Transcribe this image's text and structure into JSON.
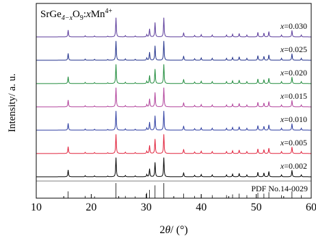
{
  "chart_data": {
    "type": "line",
    "formula": {
      "base": "SrGe",
      "sub1": "4−x",
      "mid": "O",
      "sub2": "9",
      "colon": ":",
      "x": "x",
      "dopant": "Mn",
      "sup": "4+"
    },
    "xlabel": {
      "prefix": "2",
      "theta": "θ",
      "suffix": "/ (°)"
    },
    "ylabel": "Intensity/ a. u.",
    "xlim": [
      10,
      60
    ],
    "xticks": [
      "10",
      "20",
      "30",
      "40",
      "50",
      "60"
    ],
    "reference_label": "PDF No.14-0029",
    "reference_lines": [
      {
        "x": 15.8,
        "h": 0.45
      },
      {
        "x": 18.9,
        "h": 0.15
      },
      {
        "x": 20.6,
        "h": 0.12
      },
      {
        "x": 24.5,
        "h": 1.0
      },
      {
        "x": 26.2,
        "h": 0.15
      },
      {
        "x": 28.0,
        "h": 0.12
      },
      {
        "x": 30.1,
        "h": 0.35
      },
      {
        "x": 30.6,
        "h": 0.55
      },
      {
        "x": 31.6,
        "h": 0.85
      },
      {
        "x": 33.2,
        "h": 1.0
      },
      {
        "x": 36.8,
        "h": 0.3
      },
      {
        "x": 38.8,
        "h": 0.15
      },
      {
        "x": 40.0,
        "h": 0.25
      },
      {
        "x": 42.0,
        "h": 0.2
      },
      {
        "x": 44.6,
        "h": 0.2
      },
      {
        "x": 45.7,
        "h": 0.25
      },
      {
        "x": 46.9,
        "h": 0.3
      },
      {
        "x": 48.3,
        "h": 0.2
      },
      {
        "x": 50.3,
        "h": 0.35
      },
      {
        "x": 51.4,
        "h": 0.3
      },
      {
        "x": 52.3,
        "h": 0.4
      },
      {
        "x": 54.6,
        "h": 0.2
      },
      {
        "x": 56.5,
        "h": 0.45
      },
      {
        "x": 58.2,
        "h": 0.2
      }
    ],
    "peaks": [
      {
        "x": 15.8,
        "h": 0.36
      },
      {
        "x": 18.9,
        "h": 0.06
      },
      {
        "x": 20.6,
        "h": 0.05
      },
      {
        "x": 23.0,
        "h": 0.04
      },
      {
        "x": 24.5,
        "h": 1.0
      },
      {
        "x": 26.2,
        "h": 0.07
      },
      {
        "x": 28.0,
        "h": 0.05
      },
      {
        "x": 30.1,
        "h": 0.12
      },
      {
        "x": 30.6,
        "h": 0.42
      },
      {
        "x": 31.6,
        "h": 0.75
      },
      {
        "x": 33.2,
        "h": 1.0
      },
      {
        "x": 36.8,
        "h": 0.22
      },
      {
        "x": 38.8,
        "h": 0.08
      },
      {
        "x": 40.0,
        "h": 0.12
      },
      {
        "x": 42.0,
        "h": 0.1
      },
      {
        "x": 44.6,
        "h": 0.1
      },
      {
        "x": 45.7,
        "h": 0.14
      },
      {
        "x": 46.9,
        "h": 0.18
      },
      {
        "x": 48.3,
        "h": 0.1
      },
      {
        "x": 50.3,
        "h": 0.24
      },
      {
        "x": 51.4,
        "h": 0.2
      },
      {
        "x": 52.3,
        "h": 0.28
      },
      {
        "x": 54.6,
        "h": 0.1
      },
      {
        "x": 56.5,
        "h": 0.34
      },
      {
        "x": 58.2,
        "h": 0.1
      }
    ],
    "series": [
      {
        "name": "x=0.030",
        "var": "x",
        "value": "=0.030",
        "color": "#5a3a9a"
      },
      {
        "name": "x=0.025",
        "var": "x",
        "value": "=0.025",
        "color": "#1f2f8a"
      },
      {
        "name": "x=0.020",
        "var": "x",
        "value": "=0.020",
        "color": "#1e8a3a"
      },
      {
        "name": "x=0.015",
        "var": "x",
        "value": "=0.015",
        "color": "#b0409a"
      },
      {
        "name": "x=0.010",
        "var": "x",
        "value": "=0.010",
        "color": "#2a3aa0"
      },
      {
        "name": "x=0.005",
        "var": "x",
        "value": "=0.005",
        "color": "#e0203a"
      },
      {
        "name": "x=0.002",
        "var": "x",
        "value": "=0.002",
        "color": "#000000"
      }
    ]
  }
}
